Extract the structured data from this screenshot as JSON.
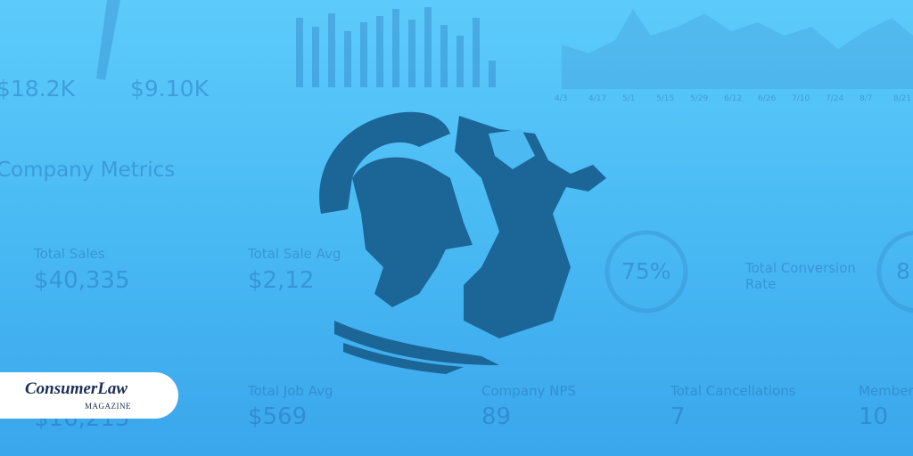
{
  "dashboard": {
    "top_values": [
      "$18.2K",
      "$9.10K"
    ],
    "date_labels": [
      "4/3",
      "4/17",
      "5/1",
      "5/15",
      "5/29",
      "6/12",
      "6/26",
      "7/10",
      "7/24",
      "8/7",
      "8/21"
    ],
    "section_title": "Company Metrics",
    "metrics": [
      {
        "label": "Total Sales",
        "value": "$40,335"
      },
      {
        "label": "Total Sale Avg",
        "value": "$2,12"
      },
      {
        "label": "Total Conversion Rate",
        "value": "75%"
      },
      {
        "label": "Total Job Avg",
        "value": "$569"
      },
      {
        "label": "Company NPS",
        "value": "89"
      },
      {
        "label": "Total Cancellations",
        "value": "7"
      },
      {
        "label": "Member",
        "value": "10"
      }
    ],
    "partial_values": [
      "$16,215",
      "8"
    ]
  },
  "badge": {
    "brand": "ConsumerLaw",
    "sub": "MAGAZINE"
  }
}
